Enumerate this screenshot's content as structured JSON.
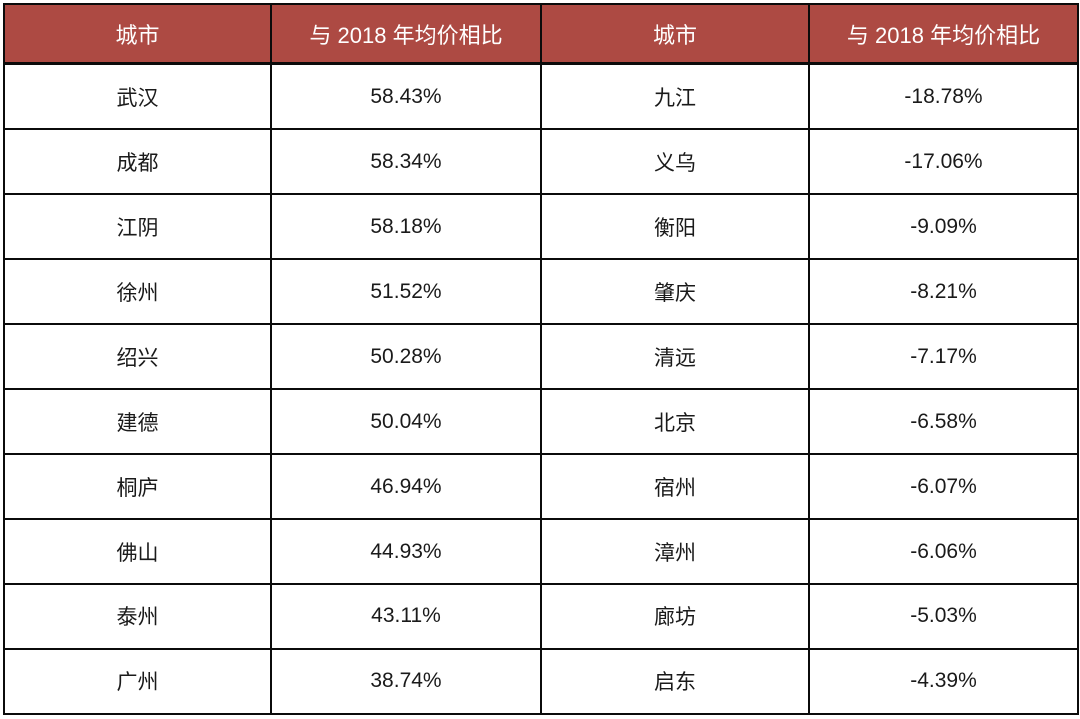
{
  "colors": {
    "header_bg": "#ad4a43",
    "header_text": "#ffffff",
    "border": "#0b0b0b",
    "cell_text": "#1a1a1a",
    "background": "#ffffff"
  },
  "chart_data": {
    "type": "table",
    "title": "",
    "columns": [
      "城市",
      "与 2018 年均价相比",
      "城市",
      "与 2018 年均价相比"
    ],
    "rows": [
      {
        "city_left": "武汉",
        "value_left": "58.43%",
        "city_right": "九江",
        "value_right": "-18.78%"
      },
      {
        "city_left": "成都",
        "value_left": "58.34%",
        "city_right": "义乌",
        "value_right": "-17.06%"
      },
      {
        "city_left": "江阴",
        "value_left": "58.18%",
        "city_right": "衡阳",
        "value_right": "-9.09%"
      },
      {
        "city_left": "徐州",
        "value_left": "51.52%",
        "city_right": "肇庆",
        "value_right": "-8.21%"
      },
      {
        "city_left": "绍兴",
        "value_left": "50.28%",
        "city_right": "清远",
        "value_right": "-7.17%"
      },
      {
        "city_left": "建德",
        "value_left": "50.04%",
        "city_right": "北京",
        "value_right": "-6.58%"
      },
      {
        "city_left": "桐庐",
        "value_left": "46.94%",
        "city_right": "宿州",
        "value_right": "-6.07%"
      },
      {
        "city_left": "佛山",
        "value_left": "44.93%",
        "city_right": "漳州",
        "value_right": "-6.06%"
      },
      {
        "city_left": "泰州",
        "value_left": "43.11%",
        "city_right": "廊坊",
        "value_right": "-5.03%"
      },
      {
        "city_left": "广州",
        "value_left": "38.74%",
        "city_right": "启东",
        "value_right": "-4.39%"
      }
    ]
  }
}
